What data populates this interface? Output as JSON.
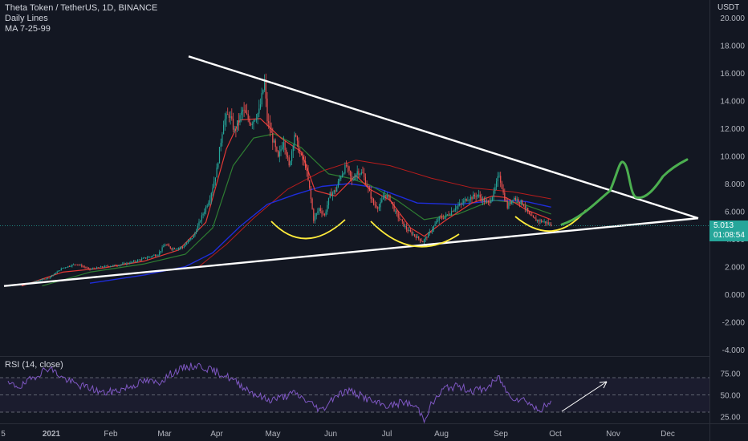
{
  "legend": {
    "symbol": "Theta Token / TetherUS, 1D, BINANCE",
    "line2": "Daily Lines",
    "line3": "MA 7-25-99"
  },
  "price_axis": {
    "currency": "USDT",
    "last_price": "5.013",
    "countdown": "01:08:54"
  },
  "rsi": {
    "label": "RSI (14, close)",
    "ticks": [
      "75.00",
      "50.00",
      "25.00"
    ]
  },
  "colors": {
    "background": "#131722",
    "up": "#26a69a",
    "down": "#ef5350",
    "ma_fast": "#e53935",
    "ma_mid": "#2e7d32",
    "ma_slow": "#1e2ddb",
    "trendline": "#ffffff",
    "cup": "#ffeb3b",
    "projection": "#4caf50",
    "rsi_line": "#7e57c2"
  },
  "chart_data": [
    {
      "type": "candlestick",
      "yticks": [
        "20.000",
        "18.000",
        "16.000",
        "14.000",
        "12.000",
        "10.000",
        "8.000",
        "6.000",
        "4.000",
        "2.000",
        "0.000",
        "-2.000",
        "-4.000"
      ],
      "ytick_values": [
        20,
        18,
        16,
        14,
        12,
        10,
        8,
        6,
        4,
        2,
        0,
        -2,
        -4
      ],
      "xticks": [
        "5",
        "2021",
        "Feb",
        "Mar",
        "Apr",
        "May",
        "Jun",
        "Jul",
        "Aug",
        "Sep",
        "Oct",
        "Nov",
        "Dec"
      ],
      "ylim": [
        -4.3,
        20.9
      ],
      "price_keypoints": [
        [
          0,
          0.6
        ],
        [
          15,
          0.8
        ],
        [
          30,
          1.2
        ],
        [
          40,
          1.9
        ],
        [
          50,
          2.2
        ],
        [
          60,
          1.8
        ],
        [
          70,
          2.0
        ],
        [
          80,
          2.1
        ],
        [
          90,
          2.3
        ],
        [
          100,
          2.6
        ],
        [
          110,
          2.9
        ],
        [
          115,
          3.6
        ],
        [
          120,
          3.3
        ],
        [
          128,
          3.4
        ],
        [
          136,
          4.2
        ],
        [
          142,
          5.6
        ],
        [
          148,
          7.0
        ],
        [
          153,
          9.0
        ],
        [
          158,
          12.5
        ],
        [
          162,
          13.0
        ],
        [
          166,
          11.8
        ],
        [
          172,
          13.3
        ],
        [
          178,
          12.4
        ],
        [
          184,
          13.2
        ],
        [
          188,
          15.3
        ],
        [
          190,
          12.6
        ],
        [
          194,
          11.2
        ],
        [
          198,
          9.8
        ],
        [
          202,
          11.2
        ],
        [
          206,
          9.2
        ],
        [
          210,
          11.6
        ],
        [
          214,
          10.1
        ],
        [
          218,
          9.3
        ],
        [
          221,
          7.6
        ],
        [
          224,
          5.4
        ],
        [
          228,
          6.2
        ],
        [
          232,
          5.7
        ],
        [
          236,
          7.2
        ],
        [
          240,
          7.5
        ],
        [
          244,
          8.6
        ],
        [
          248,
          9.3
        ],
        [
          252,
          8.2
        ],
        [
          256,
          8.9
        ],
        [
          260,
          8.7
        ],
        [
          264,
          7.6
        ],
        [
          268,
          6.5
        ],
        [
          272,
          6.3
        ],
        [
          276,
          7.2
        ],
        [
          280,
          6.9
        ],
        [
          284,
          5.9
        ],
        [
          288,
          5.3
        ],
        [
          292,
          4.7
        ],
        [
          296,
          4.4
        ],
        [
          300,
          4.1
        ],
        [
          304,
          3.8
        ],
        [
          308,
          4.3
        ],
        [
          312,
          4.9
        ],
        [
          316,
          5.5
        ],
        [
          320,
          5.6
        ],
        [
          324,
          5.9
        ],
        [
          328,
          6.3
        ],
        [
          332,
          6.5
        ],
        [
          336,
          6.9
        ],
        [
          340,
          7.0
        ],
        [
          344,
          7.2
        ],
        [
          348,
          6.8
        ],
        [
          352,
          6.6
        ],
        [
          356,
          7.3
        ],
        [
          360,
          8.7
        ],
        [
          363,
          7.3
        ],
        [
          366,
          6.3
        ],
        [
          370,
          7.0
        ],
        [
          374,
          6.8
        ],
        [
          378,
          6.5
        ],
        [
          382,
          5.7
        ],
        [
          386,
          5.4
        ],
        [
          390,
          5.3
        ],
        [
          394,
          5.2
        ],
        [
          398,
          5.01
        ]
      ],
      "ma_fast_keypoints": [
        [
          10,
          0.6
        ],
        [
          40,
          1.6
        ],
        [
          70,
          1.9
        ],
        [
          100,
          2.4
        ],
        [
          125,
          3.2
        ],
        [
          145,
          5.2
        ],
        [
          160,
          10.5
        ],
        [
          170,
          12.6
        ],
        [
          185,
          12.7
        ],
        [
          200,
          11.3
        ],
        [
          215,
          10.3
        ],
        [
          225,
          7.5
        ],
        [
          240,
          7.1
        ],
        [
          255,
          8.6
        ],
        [
          265,
          7.6
        ],
        [
          280,
          6.8
        ],
        [
          295,
          4.8
        ],
        [
          305,
          4.2
        ],
        [
          320,
          5.3
        ],
        [
          340,
          6.6
        ],
        [
          355,
          7.1
        ],
        [
          365,
          7.0
        ],
        [
          380,
          6.1
        ],
        [
          398,
          5.4
        ]
      ],
      "ma_mid_keypoints": [
        [
          25,
          0.6
        ],
        [
          60,
          1.6
        ],
        [
          100,
          2.2
        ],
        [
          130,
          2.9
        ],
        [
          150,
          4.8
        ],
        [
          165,
          9.3
        ],
        [
          180,
          11.3
        ],
        [
          195,
          11.6
        ],
        [
          215,
          10.6
        ],
        [
          235,
          8.7
        ],
        [
          250,
          8.4
        ],
        [
          265,
          7.9
        ],
        [
          285,
          6.8
        ],
        [
          305,
          5.4
        ],
        [
          330,
          5.8
        ],
        [
          355,
          6.8
        ],
        [
          375,
          6.6
        ],
        [
          398,
          5.8
        ]
      ],
      "ma_slow_keypoints": [
        [
          60,
          0.8
        ],
        [
          100,
          1.4
        ],
        [
          130,
          2.0
        ],
        [
          150,
          3.0
        ],
        [
          170,
          4.9
        ],
        [
          190,
          6.5
        ],
        [
          210,
          7.2
        ],
        [
          230,
          7.8
        ],
        [
          250,
          8.0
        ],
        [
          270,
          7.7
        ],
        [
          300,
          6.6
        ],
        [
          330,
          6.5
        ],
        [
          360,
          6.8
        ],
        [
          380,
          6.7
        ],
        [
          398,
          6.3
        ]
      ],
      "ma_red_long_keypoints": [
        [
          140,
          2.0
        ],
        [
          160,
          3.6
        ],
        [
          180,
          5.5
        ],
        [
          205,
          7.6
        ],
        [
          230,
          8.9
        ],
        [
          255,
          9.7
        ],
        [
          280,
          9.3
        ],
        [
          310,
          8.4
        ],
        [
          340,
          7.7
        ],
        [
          370,
          7.4
        ],
        [
          398,
          6.9
        ]
      ],
      "drawings": {
        "trend_upper": [
          [
            0,
            null
          ],
          [
            75,
            17.1
          ],
          [
            178,
            16.0
          ]
        ],
        "apex": 5.5
      }
    },
    {
      "type": "line",
      "title": "RSI (14, close)",
      "ylim": [
        15,
        95
      ],
      "levels": [
        70,
        50,
        30
      ],
      "ytick_labels": [
        "75.00",
        "50.00",
        "25.00"
      ],
      "ytick_values": [
        75,
        50,
        25
      ],
      "rsi_keypoints": [
        [
          0,
          62
        ],
        [
          10,
          60
        ],
        [
          20,
          72
        ],
        [
          30,
          82
        ],
        [
          40,
          70
        ],
        [
          50,
          62
        ],
        [
          60,
          58
        ],
        [
          70,
          52
        ],
        [
          80,
          55
        ],
        [
          90,
          60
        ],
        [
          100,
          66
        ],
        [
          110,
          64
        ],
        [
          120,
          75
        ],
        [
          130,
          82
        ],
        [
          140,
          84
        ],
        [
          150,
          78
        ],
        [
          160,
          72
        ],
        [
          170,
          62
        ],
        [
          180,
          52
        ],
        [
          190,
          44
        ],
        [
          200,
          47
        ],
        [
          210,
          52
        ],
        [
          220,
          42
        ],
        [
          230,
          32
        ],
        [
          240,
          50
        ],
        [
          250,
          55
        ],
        [
          260,
          48
        ],
        [
          270,
          40
        ],
        [
          280,
          37
        ],
        [
          290,
          42
        ],
        [
          300,
          35
        ],
        [
          305,
          22
        ],
        [
          310,
          38
        ],
        [
          320,
          58
        ],
        [
          330,
          60
        ],
        [
          340,
          55
        ],
        [
          350,
          57
        ],
        [
          360,
          70
        ],
        [
          366,
          52
        ],
        [
          372,
          46
        ],
        [
          380,
          44
        ],
        [
          388,
          32
        ],
        [
          398,
          40
        ]
      ]
    }
  ]
}
